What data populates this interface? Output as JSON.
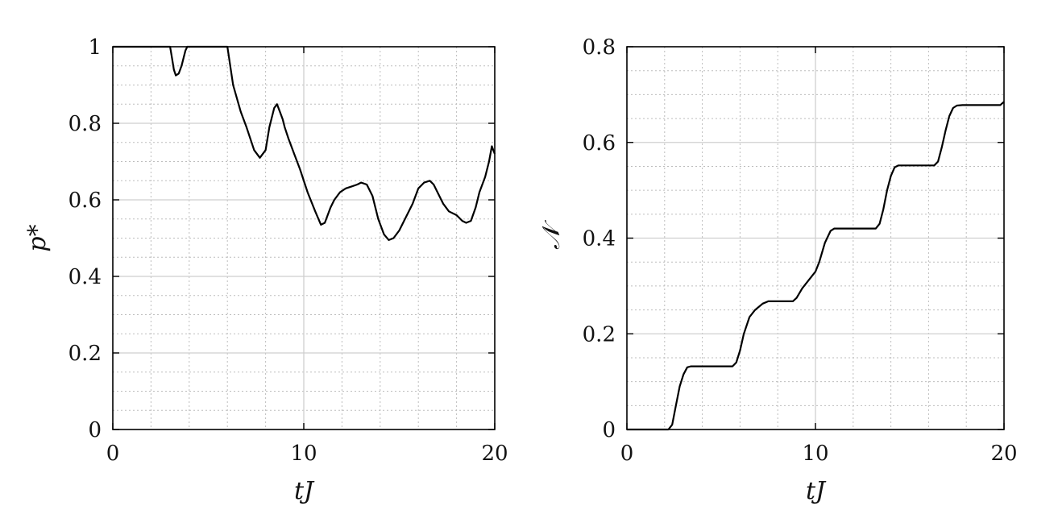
{
  "chart_data": [
    {
      "type": "line",
      "xlabel": "tJ",
      "ylabel": "p*",
      "xlim": [
        0,
        20
      ],
      "ylim": [
        0,
        1
      ],
      "xticks": [
        "0",
        "10",
        "20"
      ],
      "yticks": [
        "0",
        "0.2",
        "0.4",
        "0.6",
        "0.8",
        "1"
      ],
      "grid": "major solid, minor dotted",
      "series": [
        {
          "x": [
            0.0,
            3.0,
            3.1,
            3.2,
            3.3,
            3.45,
            3.6,
            3.8,
            3.9,
            4.0,
            5.0,
            6.0,
            6.3,
            6.7,
            7.0,
            7.4,
            7.7,
            8.0,
            8.2,
            8.45,
            8.6,
            8.75,
            8.9,
            9.0,
            9.2,
            9.5,
            9.8,
            10.2,
            10.6,
            10.9,
            11.1,
            11.4,
            11.6,
            11.9,
            12.2,
            12.5,
            12.8,
            13.0,
            13.3,
            13.6,
            13.9,
            14.2,
            14.45,
            14.7,
            15.0,
            15.4,
            15.7,
            16.0,
            16.3,
            16.6,
            16.8,
            17.0,
            17.3,
            17.6,
            18.0,
            18.3,
            18.5,
            18.75,
            19.0,
            19.2,
            19.5,
            19.7,
            19.85,
            20.0
          ],
          "y": [
            1.0,
            1.0,
            0.97,
            0.94,
            0.925,
            0.93,
            0.95,
            0.99,
            1.0,
            1.0,
            1.0,
            1.0,
            0.9,
            0.83,
            0.79,
            0.73,
            0.71,
            0.73,
            0.79,
            0.84,
            0.85,
            0.83,
            0.81,
            0.79,
            0.76,
            0.72,
            0.68,
            0.62,
            0.57,
            0.535,
            0.54,
            0.58,
            0.6,
            0.62,
            0.63,
            0.635,
            0.64,
            0.645,
            0.64,
            0.61,
            0.55,
            0.51,
            0.495,
            0.5,
            0.52,
            0.56,
            0.59,
            0.63,
            0.645,
            0.65,
            0.64,
            0.62,
            0.59,
            0.57,
            0.56,
            0.545,
            0.54,
            0.545,
            0.58,
            0.62,
            0.66,
            0.7,
            0.74,
            0.72
          ]
        }
      ]
    },
    {
      "type": "line",
      "xlabel": "tJ",
      "ylabel": "𝒩",
      "xlim": [
        0,
        20
      ],
      "ylim": [
        0,
        0.8
      ],
      "xticks": [
        "0",
        "10",
        "20"
      ],
      "yticks": [
        "0",
        "0.2",
        "0.4",
        "0.6",
        "0.8"
      ],
      "grid": "major solid, minor dotted",
      "series": [
        {
          "x": [
            0.0,
            2.2,
            2.4,
            2.6,
            2.8,
            3.0,
            3.2,
            3.4,
            5.6,
            5.8,
            6.0,
            6.2,
            6.5,
            6.8,
            7.2,
            7.5,
            8.8,
            9.0,
            9.3,
            9.6,
            10.0,
            10.2,
            10.5,
            10.8,
            11.0,
            13.2,
            13.4,
            13.6,
            13.8,
            14.0,
            14.2,
            14.4,
            16.3,
            16.5,
            16.7,
            16.9,
            17.1,
            17.3,
            17.5,
            17.8,
            19.8,
            20.0
          ],
          "y": [
            0.0,
            0.0,
            0.01,
            0.05,
            0.09,
            0.115,
            0.13,
            0.132,
            0.132,
            0.14,
            0.165,
            0.2,
            0.235,
            0.25,
            0.263,
            0.268,
            0.268,
            0.275,
            0.295,
            0.31,
            0.33,
            0.35,
            0.39,
            0.415,
            0.42,
            0.42,
            0.43,
            0.46,
            0.5,
            0.53,
            0.548,
            0.552,
            0.552,
            0.56,
            0.59,
            0.625,
            0.655,
            0.672,
            0.677,
            0.678,
            0.678,
            0.685
          ]
        }
      ]
    }
  ]
}
